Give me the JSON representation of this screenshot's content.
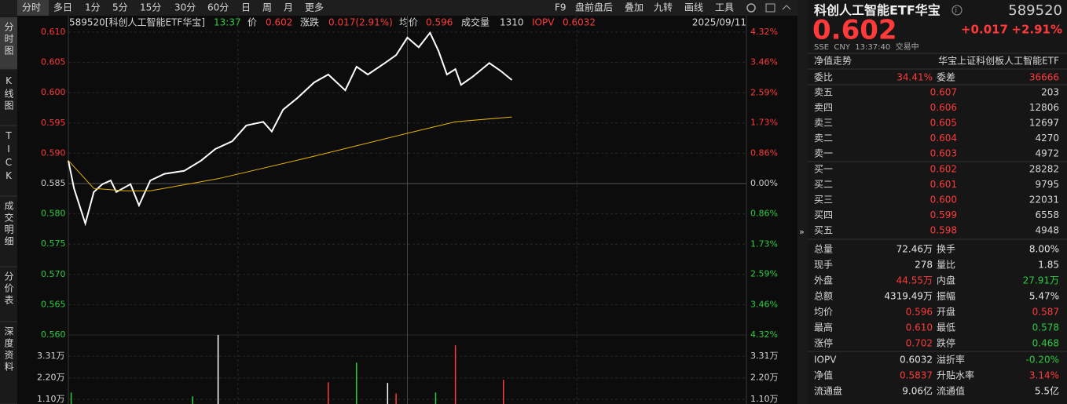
{
  "toolbar": {
    "left": [
      "分时",
      "多日",
      "1分",
      "5分",
      "15分",
      "30分",
      "60分",
      "日",
      "周",
      "月",
      "更多"
    ],
    "right": [
      "F9",
      "盘前盘后",
      "叠加",
      "九转",
      "画线",
      "工具"
    ]
  },
  "side_tabs": [
    "分时图",
    "K线图",
    "TICK",
    "成交明细",
    "分价表",
    "深度资料"
  ],
  "info": {
    "code_name": "589520[科创人工智能ETF华宝]",
    "time": "13:37",
    "price_label": "价",
    "price": "0.602",
    "change_label": "涨跌",
    "change": "0.017(2.91%)",
    "avg_label": "均价",
    "avg": "0.596",
    "volume_label": "成交量",
    "volume": "1310",
    "iopv_label": "IOPV",
    "iopv": "0.6032",
    "date": "2025/09/11"
  },
  "chart_data": {
    "type": "line",
    "series": [
      {
        "color": "#ffffff",
        "x": [
          0,
          2,
          6,
          9,
          12,
          15,
          17,
          22,
          25,
          29,
          34,
          41,
          47,
          52,
          58,
          63,
          69,
          72,
          76,
          81,
          87,
          92,
          98,
          102,
          106,
          112,
          116,
          120,
          124,
          128,
          131,
          134,
          137,
          139,
          143,
          149,
          153,
          157
        ],
        "values": [
          0.5888,
          0.5842,
          0.5784,
          0.5836,
          0.5849,
          0.5855,
          0.5836,
          0.5849,
          0.5814,
          0.5855,
          0.5866,
          0.5871,
          0.5888,
          0.5907,
          0.592,
          0.5946,
          0.5952,
          0.5936,
          0.5972,
          0.5991,
          0.6017,
          0.603,
          0.6004,
          0.6043,
          0.603,
          0.6049,
          0.6062,
          0.6091,
          0.6075,
          0.6099,
          0.6069,
          0.603,
          0.6039,
          0.6013,
          0.6026,
          0.6049,
          0.6036,
          0.6021
        ]
      },
      {
        "color": "#e8b400",
        "x": [
          0,
          9,
          20,
          29,
          53,
          86,
          120,
          137,
          157
        ],
        "values": [
          0.5888,
          0.5842,
          0.5838,
          0.5838,
          0.5858,
          0.5894,
          0.5933,
          0.5952,
          0.596
        ]
      }
    ],
    "xlim": [
      0,
      240
    ],
    "xgrid": [
      60,
      120,
      180
    ],
    "ylim": [
      0.56,
      0.61
    ],
    "yticks": [
      {
        "value": 0.61,
        "label": "0.610"
      },
      0.605,
      {
        "value": 0.6,
        "label": "0.600"
      },
      0.595,
      {
        "value": 0.59,
        "label": "0.590"
      },
      0.585,
      {
        "value": 0.58,
        "label": "0.580"
      },
      0.575,
      {
        "value": 0.57,
        "label": "0.570"
      },
      0.565,
      {
        "value": 0.56,
        "label": "0.560"
      }
    ],
    "y2lim": [
      -4.32,
      4.32
    ],
    "y2ticks": [
      {
        "value": 4.32,
        "label": "4.32%"
      },
      {
        "value": 3.46,
        "label": "3.46%"
      },
      {
        "value": 2.59,
        "label": "2.59%"
      },
      {
        "value": 1.73,
        "label": "1.73%"
      },
      {
        "value": 0.86,
        "label": "0.86%"
      },
      {
        "value": 0,
        "label": "0.00%"
      },
      {
        "value": -0.86,
        "label": "0.86%"
      },
      {
        "value": -1.73,
        "label": "1.73%"
      },
      {
        "value": -2.59,
        "label": "2.59%"
      },
      {
        "value": -3.46,
        "label": "3.46%"
      },
      {
        "value": -4.32,
        "label": "4.32%"
      }
    ],
    "up_color": "#ff3a3a",
    "down_color": "#2ecc40",
    "grid": true,
    "volume": {
      "x": [
        1,
        44,
        53,
        92,
        102,
        113,
        116,
        130,
        137,
        154
      ],
      "values": [
        14500,
        12500,
        44000,
        19700,
        29800,
        19400,
        14000,
        14500,
        38700,
        21000
      ],
      "colors": [
        "#2ecc40",
        "#2ecc40",
        "#ffffff",
        "#ff3a3a",
        "#2ecc40",
        "#ffffff",
        "#ff3a3a",
        "#2ecc40",
        "#ff3a3a",
        "#ff3a3a"
      ],
      "ylim": [
        0,
        44000
      ],
      "yticks": [
        {
          "value": 33100,
          "label": "3.31万"
        },
        {
          "value": 22000,
          "label": "2.20万"
        },
        {
          "value": 11000,
          "label": "1.10万"
        }
      ]
    }
  },
  "quote": {
    "name": "科创人工智能ETF华宝",
    "code": "589520",
    "price": "0.602",
    "change": "+0.017",
    "change_pct": "+2.91%",
    "status": "SSE  CNY  13:37:40  交易中",
    "nav_label": "净值走势",
    "fund_name": "华宝上证科创板人工智能ETF",
    "ratio": [
      "委比",
      "34.41%",
      "委差",
      "36666"
    ],
    "asks": [
      [
        "卖五",
        "0.607",
        "203"
      ],
      [
        "卖四",
        "0.606",
        "12806"
      ],
      [
        "卖三",
        "0.605",
        "12697"
      ],
      [
        "卖二",
        "0.604",
        "4270"
      ],
      [
        "卖一",
        "0.603",
        "4972"
      ]
    ],
    "bids": [
      [
        "买一",
        "0.602",
        "28282"
      ],
      [
        "买二",
        "0.601",
        "9795"
      ],
      [
        "买三",
        "0.600",
        "22031"
      ],
      [
        "买四",
        "0.599",
        "6558"
      ],
      [
        "买五",
        "0.598",
        "4948"
      ]
    ],
    "stats": [
      [
        "总量",
        "72.46万",
        "#e6e6e6",
        "换手",
        "8.00%",
        "#e6e6e6"
      ],
      [
        "现手",
        "278",
        "#e6e6e6",
        "量比",
        "1.85",
        "#e6e6e6"
      ],
      [
        "外盘",
        "44.55万",
        "#ff3a3a",
        "内盘",
        "27.91万",
        "#2ecc40"
      ],
      [
        "总额",
        "4319.49万",
        "#e6e6e6",
        "振幅",
        "5.47%",
        "#e6e6e6"
      ],
      [
        "均价",
        "0.596",
        "#ff3a3a",
        "开盘",
        "0.587",
        "#ff3a3a"
      ],
      [
        "最高",
        "0.610",
        "#ff3a3a",
        "最低",
        "0.578",
        "#2ecc40"
      ],
      [
        "涨停",
        "0.702",
        "#ff3a3a",
        "跌停",
        "0.468",
        "#2ecc40"
      ]
    ],
    "extra": [
      [
        "IOPV",
        "0.6032",
        "#e6e6e6",
        "溢折率",
        "-0.20%",
        "#2ecc40"
      ],
      [
        "净值",
        "0.5837",
        "#ff3a3a",
        "升贴水率",
        "3.14%",
        "#ff3a3a"
      ],
      [
        "流通盘",
        "9.06亿",
        "#e6e6e6",
        "流通值",
        "5.5亿",
        "#e6e6e6"
      ]
    ]
  }
}
